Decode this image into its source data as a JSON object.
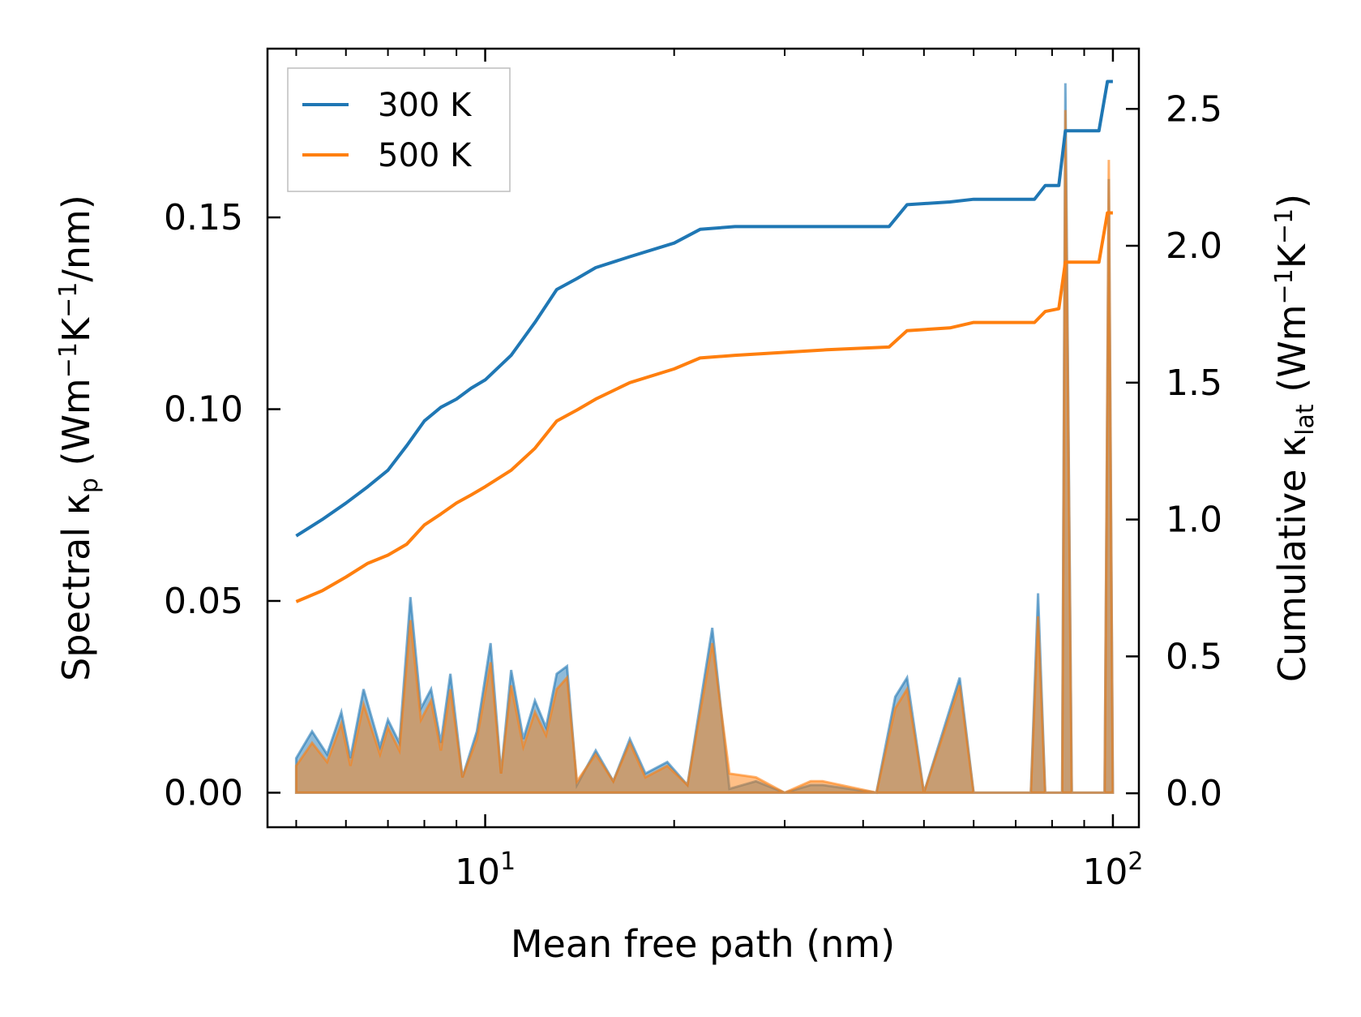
{
  "chart_data": {
    "type": "line+area",
    "xscale": "log",
    "xlim": [
      4.5,
      110
    ],
    "xlabel": "Mean free path (nm)",
    "x_ticks": [
      {
        "value": 10,
        "base": "10",
        "exp": "1"
      },
      {
        "value": 100,
        "base": "10",
        "exp": "2"
      }
    ],
    "left_axis": {
      "label_main": "Spectral κ",
      "label_sub": "p",
      "label_unit_pre": " (Wm",
      "label_sup1": "−1",
      "label_unit_mid": "K",
      "label_sup2": "−1",
      "label_unit_post": "/nm)",
      "ylim": [
        -0.009,
        0.194
      ],
      "ticks": [
        "0.00",
        "0.05",
        "0.10",
        "0.15"
      ],
      "tick_values": [
        0.0,
        0.05,
        0.1,
        0.15
      ]
    },
    "right_axis": {
      "label_main": "Cumulative κ",
      "label_sub": "lat",
      "label_unit_pre": " (Wm",
      "label_sup1": "−1",
      "label_unit_mid": "K",
      "label_sup2": "−1",
      "label_unit_post": ")",
      "ylim": [
        -0.124,
        2.72
      ],
      "ticks": [
        "0.0",
        "0.5",
        "1.0",
        "1.5",
        "2.0",
        "2.5"
      ],
      "tick_values": [
        0.0,
        0.5,
        1.0,
        1.5,
        2.0,
        2.5
      ]
    },
    "legend": {
      "position": "top-left",
      "entries": [
        "300 K",
        "500 K"
      ]
    },
    "series": [
      {
        "name": "300 K",
        "color": "#1f77b4",
        "cumulative": [
          [
            5.0,
            0.94
          ],
          [
            5.5,
            1.0
          ],
          [
            6.0,
            1.06
          ],
          [
            6.5,
            1.12
          ],
          [
            7.0,
            1.18
          ],
          [
            7.5,
            1.27
          ],
          [
            8.0,
            1.36
          ],
          [
            8.5,
            1.41
          ],
          [
            9.0,
            1.44
          ],
          [
            9.5,
            1.48
          ],
          [
            10.0,
            1.51
          ],
          [
            11.0,
            1.6
          ],
          [
            12.0,
            1.72
          ],
          [
            13.0,
            1.84
          ],
          [
            14.0,
            1.88
          ],
          [
            15.0,
            1.92
          ],
          [
            17.0,
            1.96
          ],
          [
            20.0,
            2.01
          ],
          [
            22.0,
            2.06
          ],
          [
            25.0,
            2.07
          ],
          [
            35.0,
            2.07
          ],
          [
            44.0,
            2.07
          ],
          [
            47.0,
            2.15
          ],
          [
            55.0,
            2.16
          ],
          [
            60.0,
            2.17
          ],
          [
            75.0,
            2.17
          ],
          [
            78.0,
            2.22
          ],
          [
            82.0,
            2.22
          ],
          [
            84.0,
            2.42
          ],
          [
            95.0,
            2.42
          ],
          [
            98.0,
            2.6
          ],
          [
            100.0,
            2.6
          ]
        ],
        "spectral": [
          [
            5.0,
            0.009
          ],
          [
            5.3,
            0.016
          ],
          [
            5.6,
            0.01
          ],
          [
            5.9,
            0.021
          ],
          [
            6.1,
            0.009
          ],
          [
            6.4,
            0.027
          ],
          [
            6.8,
            0.012
          ],
          [
            7.0,
            0.019
          ],
          [
            7.3,
            0.013
          ],
          [
            7.6,
            0.051
          ],
          [
            7.9,
            0.022
          ],
          [
            8.2,
            0.027
          ],
          [
            8.5,
            0.013
          ],
          [
            8.8,
            0.031
          ],
          [
            9.2,
            0.004
          ],
          [
            9.7,
            0.016
          ],
          [
            10.2,
            0.039
          ],
          [
            10.6,
            0.005
          ],
          [
            11.0,
            0.032
          ],
          [
            11.5,
            0.014
          ],
          [
            12.0,
            0.024
          ],
          [
            12.5,
            0.017
          ],
          [
            13.0,
            0.031
          ],
          [
            13.5,
            0.033
          ],
          [
            14.0,
            0.002
          ],
          [
            15.0,
            0.011
          ],
          [
            16.0,
            0.003
          ],
          [
            17.0,
            0.014
          ],
          [
            18.0,
            0.005
          ],
          [
            19.5,
            0.008
          ],
          [
            21.0,
            0.002
          ],
          [
            23.0,
            0.043
          ],
          [
            24.5,
            0.001
          ],
          [
            27.0,
            0.003
          ],
          [
            30.0,
            0.0
          ],
          [
            33.0,
            0.002
          ],
          [
            34.5,
            0.002
          ],
          [
            42.0,
            0.0
          ],
          [
            45.0,
            0.025
          ],
          [
            47.0,
            0.03
          ],
          [
            50.0,
            0.0
          ],
          [
            57.0,
            0.03
          ],
          [
            60.0,
            0.0
          ],
          [
            74.0,
            0.0
          ],
          [
            76.0,
            0.052
          ],
          [
            78.0,
            0.0
          ],
          [
            83.0,
            0.0
          ],
          [
            84.0,
            0.185
          ],
          [
            86.0,
            0.0
          ],
          [
            97.0,
            0.0
          ],
          [
            98.5,
            0.16
          ],
          [
            100.0,
            0.0
          ]
        ]
      },
      {
        "name": "500 K",
        "color": "#ff7f0e",
        "cumulative": [
          [
            5.0,
            0.7
          ],
          [
            5.5,
            0.74
          ],
          [
            6.0,
            0.79
          ],
          [
            6.5,
            0.84
          ],
          [
            7.0,
            0.87
          ],
          [
            7.5,
            0.91
          ],
          [
            8.0,
            0.98
          ],
          [
            8.5,
            1.02
          ],
          [
            9.0,
            1.06
          ],
          [
            9.5,
            1.09
          ],
          [
            10.0,
            1.12
          ],
          [
            11.0,
            1.18
          ],
          [
            12.0,
            1.26
          ],
          [
            13.0,
            1.36
          ],
          [
            14.0,
            1.4
          ],
          [
            15.0,
            1.44
          ],
          [
            17.0,
            1.5
          ],
          [
            20.0,
            1.55
          ],
          [
            22.0,
            1.59
          ],
          [
            25.0,
            1.6
          ],
          [
            35.0,
            1.62
          ],
          [
            44.0,
            1.63
          ],
          [
            47.0,
            1.69
          ],
          [
            55.0,
            1.7
          ],
          [
            60.0,
            1.72
          ],
          [
            75.0,
            1.72
          ],
          [
            78.0,
            1.76
          ],
          [
            82.0,
            1.77
          ],
          [
            84.0,
            1.94
          ],
          [
            95.0,
            1.94
          ],
          [
            98.0,
            2.12
          ],
          [
            100.0,
            2.12
          ]
        ],
        "spectral": [
          [
            5.0,
            0.007
          ],
          [
            5.3,
            0.013
          ],
          [
            5.6,
            0.008
          ],
          [
            5.9,
            0.018
          ],
          [
            6.1,
            0.007
          ],
          [
            6.4,
            0.023
          ],
          [
            6.8,
            0.01
          ],
          [
            7.0,
            0.017
          ],
          [
            7.3,
            0.011
          ],
          [
            7.6,
            0.045
          ],
          [
            7.9,
            0.019
          ],
          [
            8.2,
            0.024
          ],
          [
            8.5,
            0.011
          ],
          [
            8.8,
            0.027
          ],
          [
            9.2,
            0.004
          ],
          [
            9.7,
            0.014
          ],
          [
            10.2,
            0.034
          ],
          [
            10.6,
            0.005
          ],
          [
            11.0,
            0.028
          ],
          [
            11.5,
            0.012
          ],
          [
            12.0,
            0.021
          ],
          [
            12.5,
            0.015
          ],
          [
            13.0,
            0.027
          ],
          [
            13.5,
            0.03
          ],
          [
            14.0,
            0.003
          ],
          [
            15.0,
            0.01
          ],
          [
            16.0,
            0.003
          ],
          [
            17.0,
            0.013
          ],
          [
            18.0,
            0.004
          ],
          [
            19.5,
            0.007
          ],
          [
            21.0,
            0.002
          ],
          [
            23.0,
            0.039
          ],
          [
            24.5,
            0.005
          ],
          [
            27.0,
            0.004
          ],
          [
            30.0,
            0.0
          ],
          [
            33.0,
            0.003
          ],
          [
            34.5,
            0.003
          ],
          [
            42.0,
            0.0
          ],
          [
            45.0,
            0.022
          ],
          [
            47.0,
            0.027
          ],
          [
            50.0,
            0.0
          ],
          [
            57.0,
            0.028
          ],
          [
            60.0,
            0.0
          ],
          [
            74.0,
            0.0
          ],
          [
            76.0,
            0.046
          ],
          [
            78.0,
            0.0
          ],
          [
            83.0,
            0.0
          ],
          [
            84.0,
            0.178
          ],
          [
            86.0,
            0.0
          ],
          [
            97.0,
            0.0
          ],
          [
            98.5,
            0.165
          ],
          [
            100.0,
            0.0
          ]
        ]
      }
    ]
  }
}
